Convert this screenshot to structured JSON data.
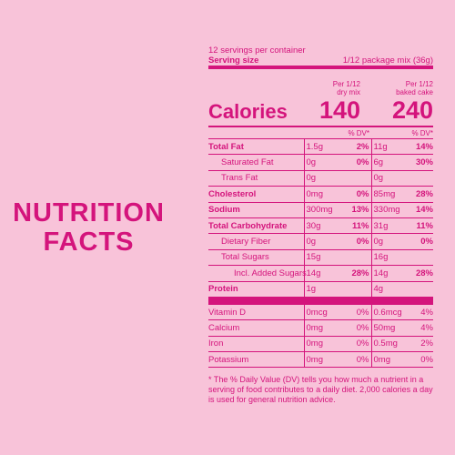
{
  "header": {
    "title_lines": [
      "NUTRITION",
      "FACTS"
    ]
  },
  "label": {
    "servings": "12 servings per container",
    "serving_size_label": "Serving size",
    "serving_size_value": "1/12 package mix (36g)",
    "columns": [
      [
        "Per 1/12",
        "dry mix"
      ],
      [
        "Per 1/12",
        "baked cake"
      ]
    ],
    "calories_label": "Calories",
    "calories": [
      "140",
      "240"
    ],
    "dv_header": "% DV*",
    "rows": [
      {
        "name": "Total Fat",
        "dry": [
          "1.5g",
          "2%"
        ],
        "baked": [
          "11g",
          "14%"
        ]
      },
      {
        "name": "Saturated Fat",
        "dry": [
          "0g",
          "0%"
        ],
        "baked": [
          "6g",
          "30%"
        ]
      },
      {
        "name": "Trans Fat",
        "dry": [
          "0g"
        ],
        "baked": [
          "0g"
        ]
      },
      {
        "name": "Cholesterol",
        "dry": [
          "0mg",
          "0%"
        ],
        "baked": [
          "85mg",
          "28%"
        ]
      },
      {
        "name": "Sodium",
        "dry": [
          "300mg",
          "13%"
        ],
        "baked": [
          "330mg",
          "14%"
        ]
      },
      {
        "name": "Total Carbohydrate",
        "dry": [
          "30g",
          "11%"
        ],
        "baked": [
          "31g",
          "11%"
        ]
      },
      {
        "name": "Dietary Fiber",
        "dry": [
          "0g",
          "0%"
        ],
        "baked": [
          "0g",
          "0%"
        ]
      },
      {
        "name": "Total Sugars",
        "dry": [
          "15g"
        ],
        "baked": [
          "16g"
        ]
      },
      {
        "name": "Incl. Added Sugars",
        "dry": [
          "14g",
          "28%"
        ],
        "baked": [
          "14g",
          "28%"
        ]
      },
      {
        "name": "Protein",
        "dry": [
          "1g"
        ],
        "baked": [
          "4g"
        ]
      },
      {
        "name": "Vitamin D",
        "dry": [
          "0mcg",
          "0%"
        ],
        "baked": [
          "0.6mcg",
          "4%"
        ]
      },
      {
        "name": "Calcium",
        "dry": [
          "0mg",
          "0%"
        ],
        "baked": [
          "50mg",
          "4%"
        ]
      },
      {
        "name": "Iron",
        "dry": [
          "0mg",
          "0%"
        ],
        "baked": [
          "0.5mg",
          "2%"
        ]
      },
      {
        "name": "Potassium",
        "dry": [
          "0mg",
          "0%"
        ],
        "baked": [
          "0mg",
          "0%"
        ]
      }
    ],
    "footnote": "* The % Daily Value (DV) tells you how much a nutrient in a serving of food contributes to a daily diet. 2,000 calories a day is used for general nutrition advice."
  }
}
